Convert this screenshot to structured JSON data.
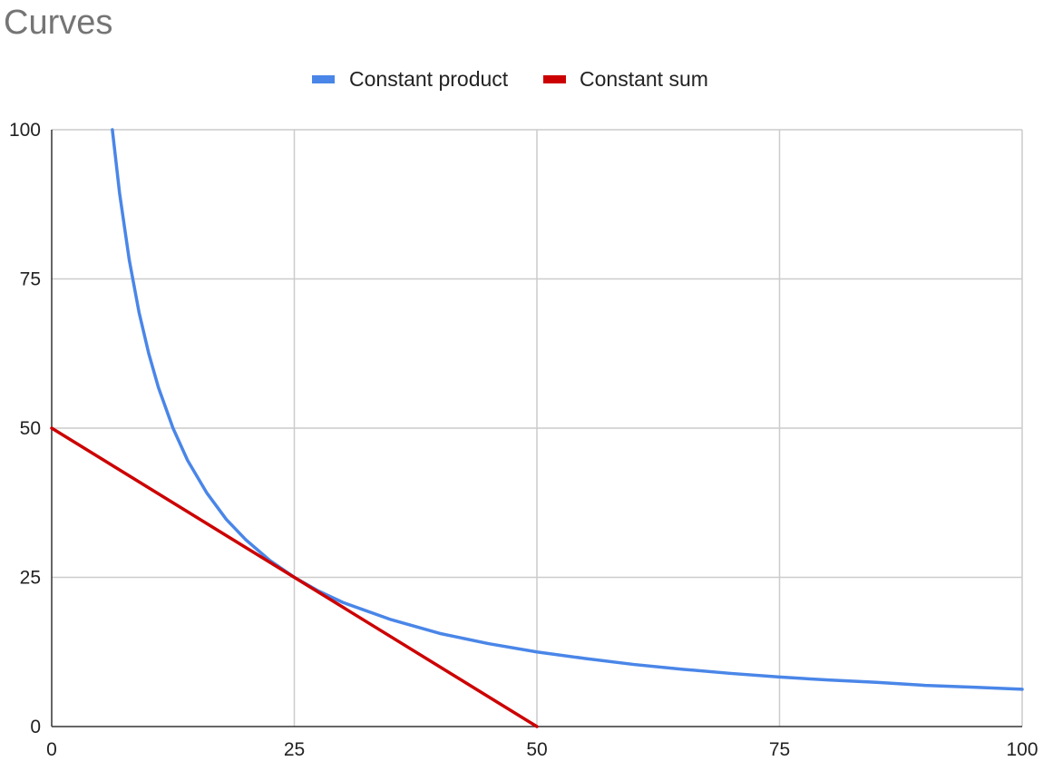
{
  "chart_data": {
    "type": "line",
    "title": "Curves",
    "xlabel": "",
    "ylabel": "",
    "xlim": [
      0,
      100
    ],
    "ylim": [
      0,
      100
    ],
    "x_ticks": [
      "0",
      "25",
      "50",
      "75",
      "100"
    ],
    "y_ticks": [
      "0",
      "25",
      "50",
      "75",
      "100"
    ],
    "grid": true,
    "legend_position": "top",
    "series": [
      {
        "name": "Constant product",
        "color": "#4a86e8",
        "x": [
          6.25,
          7,
          8,
          9,
          10,
          11,
          12.5,
          14,
          16,
          18,
          20,
          22.5,
          25,
          27.5,
          30,
          35,
          40,
          45,
          50,
          55,
          60,
          65,
          70,
          75,
          80,
          85,
          90,
          95,
          100
        ],
        "y": [
          100,
          89.3,
          78.1,
          69.4,
          62.5,
          56.8,
          50,
          44.6,
          39.1,
          34.7,
          31.3,
          27.8,
          25,
          22.7,
          20.8,
          17.9,
          15.6,
          13.9,
          12.5,
          11.4,
          10.4,
          9.6,
          8.9,
          8.3,
          7.8,
          7.4,
          6.9,
          6.6,
          6.25
        ]
      },
      {
        "name": "Constant sum",
        "color": "#cc0000",
        "x": [
          0,
          25,
          50
        ],
        "y": [
          50,
          25,
          0
        ]
      }
    ]
  }
}
